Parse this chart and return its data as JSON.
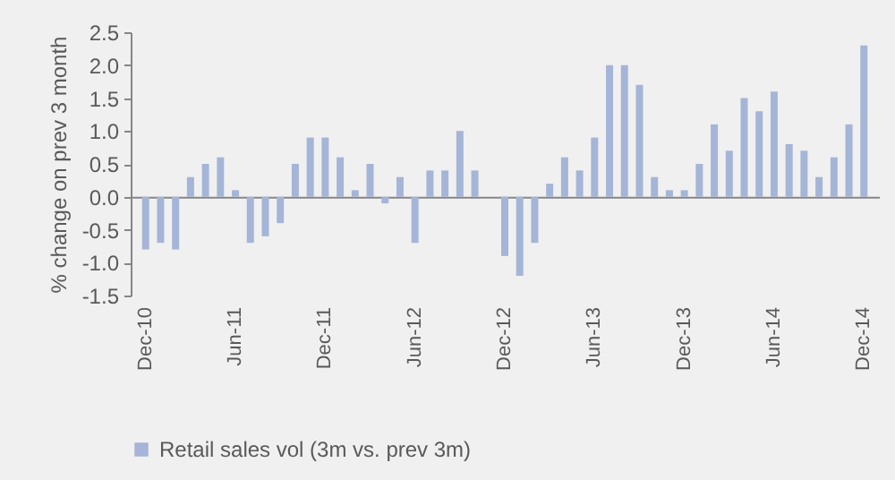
{
  "chart_data": {
    "type": "bar",
    "ylabel": "% change on prev 3 month",
    "categories": [
      "Dec-10",
      null,
      null,
      null,
      null,
      null,
      "Jun-11",
      null,
      null,
      null,
      null,
      null,
      "Dec-11",
      null,
      null,
      null,
      null,
      null,
      "Jun-12",
      null,
      null,
      null,
      null,
      null,
      "Dec-12",
      null,
      null,
      null,
      null,
      null,
      "Jun-13",
      null,
      null,
      null,
      null,
      null,
      "Dec-13",
      null,
      null,
      null,
      null,
      null,
      "Jun-14",
      null,
      null,
      null,
      null,
      null,
      "Dec-14"
    ],
    "series": [
      {
        "name": "Retail sales vol (3m vs. prev 3m)",
        "color": "#a5b5d7",
        "values": [
          -0.8,
          -0.7,
          -0.8,
          0.3,
          0.5,
          0.6,
          0.1,
          -0.7,
          -0.6,
          -0.4,
          0.5,
          0.9,
          0.9,
          0.6,
          0.1,
          0.5,
          -0.1,
          0.3,
          -0.7,
          0.4,
          0.4,
          1.0,
          0.4,
          0,
          -0.9,
          -1.2,
          -0.7,
          0.2,
          0.6,
          0.4,
          0.9,
          2.0,
          2.0,
          1.7,
          0.3,
          0.1,
          0.1,
          0.5,
          1.1,
          0.7,
          1.5,
          1.3,
          1.6,
          0.8,
          0.7,
          0.3,
          0.6,
          1.1,
          2.3
        ]
      }
    ],
    "ylim": [
      -1.5,
      2.5
    ],
    "yticks": [
      -1.5,
      {
        "value": -1,
        "label": "-1.0"
      },
      -0.5,
      {
        "value": 0,
        "label": "0.0"
      },
      0.5,
      {
        "value": 1,
        "label": "1.0"
      },
      1.5,
      {
        "value": 2,
        "label": "2.0"
      },
      2.5
    ],
    "legend": "bottom"
  }
}
